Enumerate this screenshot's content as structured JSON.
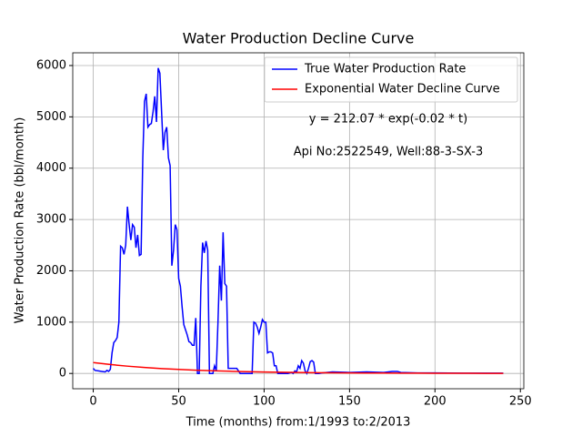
{
  "chart_data": {
    "type": "line",
    "title": "Water Production Decline Curve",
    "xlabel": "Time (months) from:1/1993 to:2/2013",
    "ylabel": "Water Production Rate (bbl/month)",
    "annotations": [
      "y = 212.07 * exp(-0.02 * t)",
      "Api No:2522549, Well:88-3-SX-3"
    ],
    "xlim": [
      -12,
      252
    ],
    "ylim": [
      -298,
      6248
    ],
    "xticks": [
      0,
      50,
      100,
      150,
      200,
      250
    ],
    "yticks": [
      0,
      1000,
      2000,
      3000,
      4000,
      5000,
      6000
    ],
    "grid": true,
    "legend": "upper right",
    "series": [
      {
        "name": "True Water Production Rate",
        "color": "#0000ff",
        "x": [
          0,
          1,
          3,
          5,
          7,
          8,
          9,
          10,
          11,
          12,
          13,
          14,
          15,
          16,
          17,
          18,
          19,
          20,
          21,
          22,
          23,
          24,
          25,
          26,
          27,
          28,
          29,
          30,
          31,
          32,
          33,
          34,
          35,
          36,
          37,
          38,
          39,
          40,
          41,
          42,
          43,
          44,
          45,
          46,
          47,
          48,
          49,
          50,
          51,
          52,
          53,
          54,
          55,
          56,
          57,
          58,
          59,
          60,
          61,
          62,
          63,
          64,
          65,
          66,
          67,
          68,
          69,
          70,
          71,
          72,
          73,
          74,
          75,
          76,
          77,
          78,
          79,
          80,
          82,
          84,
          86,
          88,
          90,
          93,
          94,
          95,
          96,
          97,
          98,
          99,
          100,
          101,
          102,
          103,
          104,
          105,
          106,
          107,
          108,
          110,
          112,
          114,
          116,
          117,
          118,
          119,
          120,
          121,
          122,
          123,
          124,
          125,
          126,
          127,
          128,
          129,
          130,
          132,
          134,
          140,
          150,
          160,
          170,
          175,
          178,
          180,
          190,
          200,
          220,
          240
        ],
        "values": [
          100,
          60,
          50,
          40,
          30,
          60,
          40,
          80,
          400,
          600,
          640,
          700,
          1000,
          2480,
          2450,
          2320,
          2500,
          3250,
          2900,
          2600,
          2900,
          2850,
          2450,
          2700,
          2300,
          2320,
          4200,
          5300,
          5450,
          4800,
          4850,
          4870,
          5100,
          5400,
          4900,
          5950,
          5850,
          5100,
          4350,
          4700,
          4800,
          4200,
          4050,
          2100,
          2400,
          2900,
          2800,
          1850,
          1700,
          1300,
          950,
          850,
          750,
          620,
          600,
          550,
          550,
          1080,
          0,
          0,
          1700,
          2550,
          2350,
          2580,
          2400,
          0,
          0,
          0,
          150,
          50,
          1000,
          2100,
          1420,
          2750,
          1750,
          1700,
          100,
          100,
          100,
          100,
          0,
          0,
          0,
          0,
          1000,
          980,
          900,
          780,
          900,
          1050,
          1000,
          1000,
          400,
          420,
          420,
          400,
          150,
          150,
          0,
          0,
          0,
          0,
          20,
          0,
          50,
          30,
          150,
          100,
          250,
          200,
          50,
          0,
          100,
          230,
          250,
          220,
          0,
          0,
          10,
          30,
          20,
          30,
          20,
          40,
          40,
          20,
          10,
          10,
          5,
          5
        ]
      },
      {
        "name": "Exponential Water Decline Curve",
        "color": "#ff0000",
        "x": [
          0,
          10,
          20,
          30,
          40,
          50,
          60,
          70,
          80,
          90,
          100,
          110,
          120,
          130,
          140,
          150,
          160,
          170,
          180,
          190,
          200,
          210,
          220,
          230,
          240
        ],
        "values": [
          212.07,
          173.63,
          142.15,
          116.39,
          95.29,
          78.02,
          63.87,
          52.29,
          42.82,
          35.05,
          28.7,
          23.5,
          19.24,
          15.75,
          12.9,
          10.56,
          8.64,
          7.08,
          5.79,
          4.74,
          3.88,
          3.18,
          2.6,
          2.13,
          1.75
        ]
      }
    ]
  }
}
